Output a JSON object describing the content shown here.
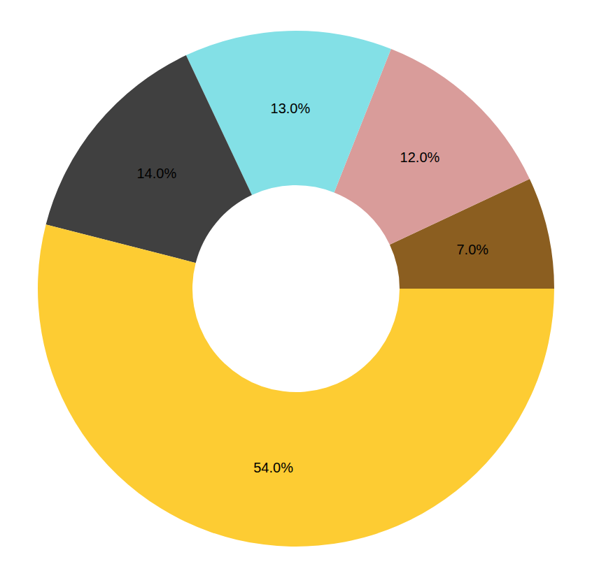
{
  "chart_data": {
    "type": "pie",
    "values": [
      7,
      12,
      13,
      14,
      54
    ],
    "value_labels": [
      "7.0%",
      "12.0%",
      "13.0%",
      "14.0%",
      "54.0%"
    ],
    "colors": [
      "#8b5e20",
      "#d99c9a",
      "#83e0e6",
      "#404040",
      "#fdcc33"
    ],
    "data_labels": true
  }
}
